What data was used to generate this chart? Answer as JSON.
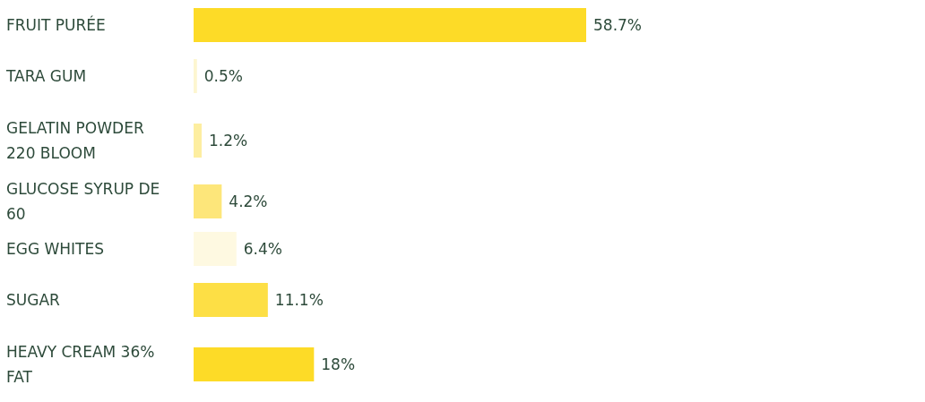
{
  "chart_data": {
    "type": "bar",
    "orientation": "horizontal",
    "categories": [
      "FRUIT PURÉE",
      "TARA GUM",
      "GELATIN POWDER 220 BLOOM",
      "GLUCOSE SYRUP DE 60",
      "EGG WHITES",
      "SUGAR",
      "HEAVY CREAM 36% FAT"
    ],
    "values": [
      58.7,
      0.5,
      1.2,
      4.2,
      6.4,
      11.1,
      18
    ],
    "colors": [
      "#fddb27",
      "#fdf6d0",
      "#fdeea0",
      "#fde67a",
      "#fef9e1",
      "#fddf45",
      "#fddb27"
    ],
    "value_labels": [
      "58.7%",
      "0.5%",
      "1.2%",
      "4.2%",
      "6.4%",
      "11.1%",
      "18%"
    ]
  }
}
